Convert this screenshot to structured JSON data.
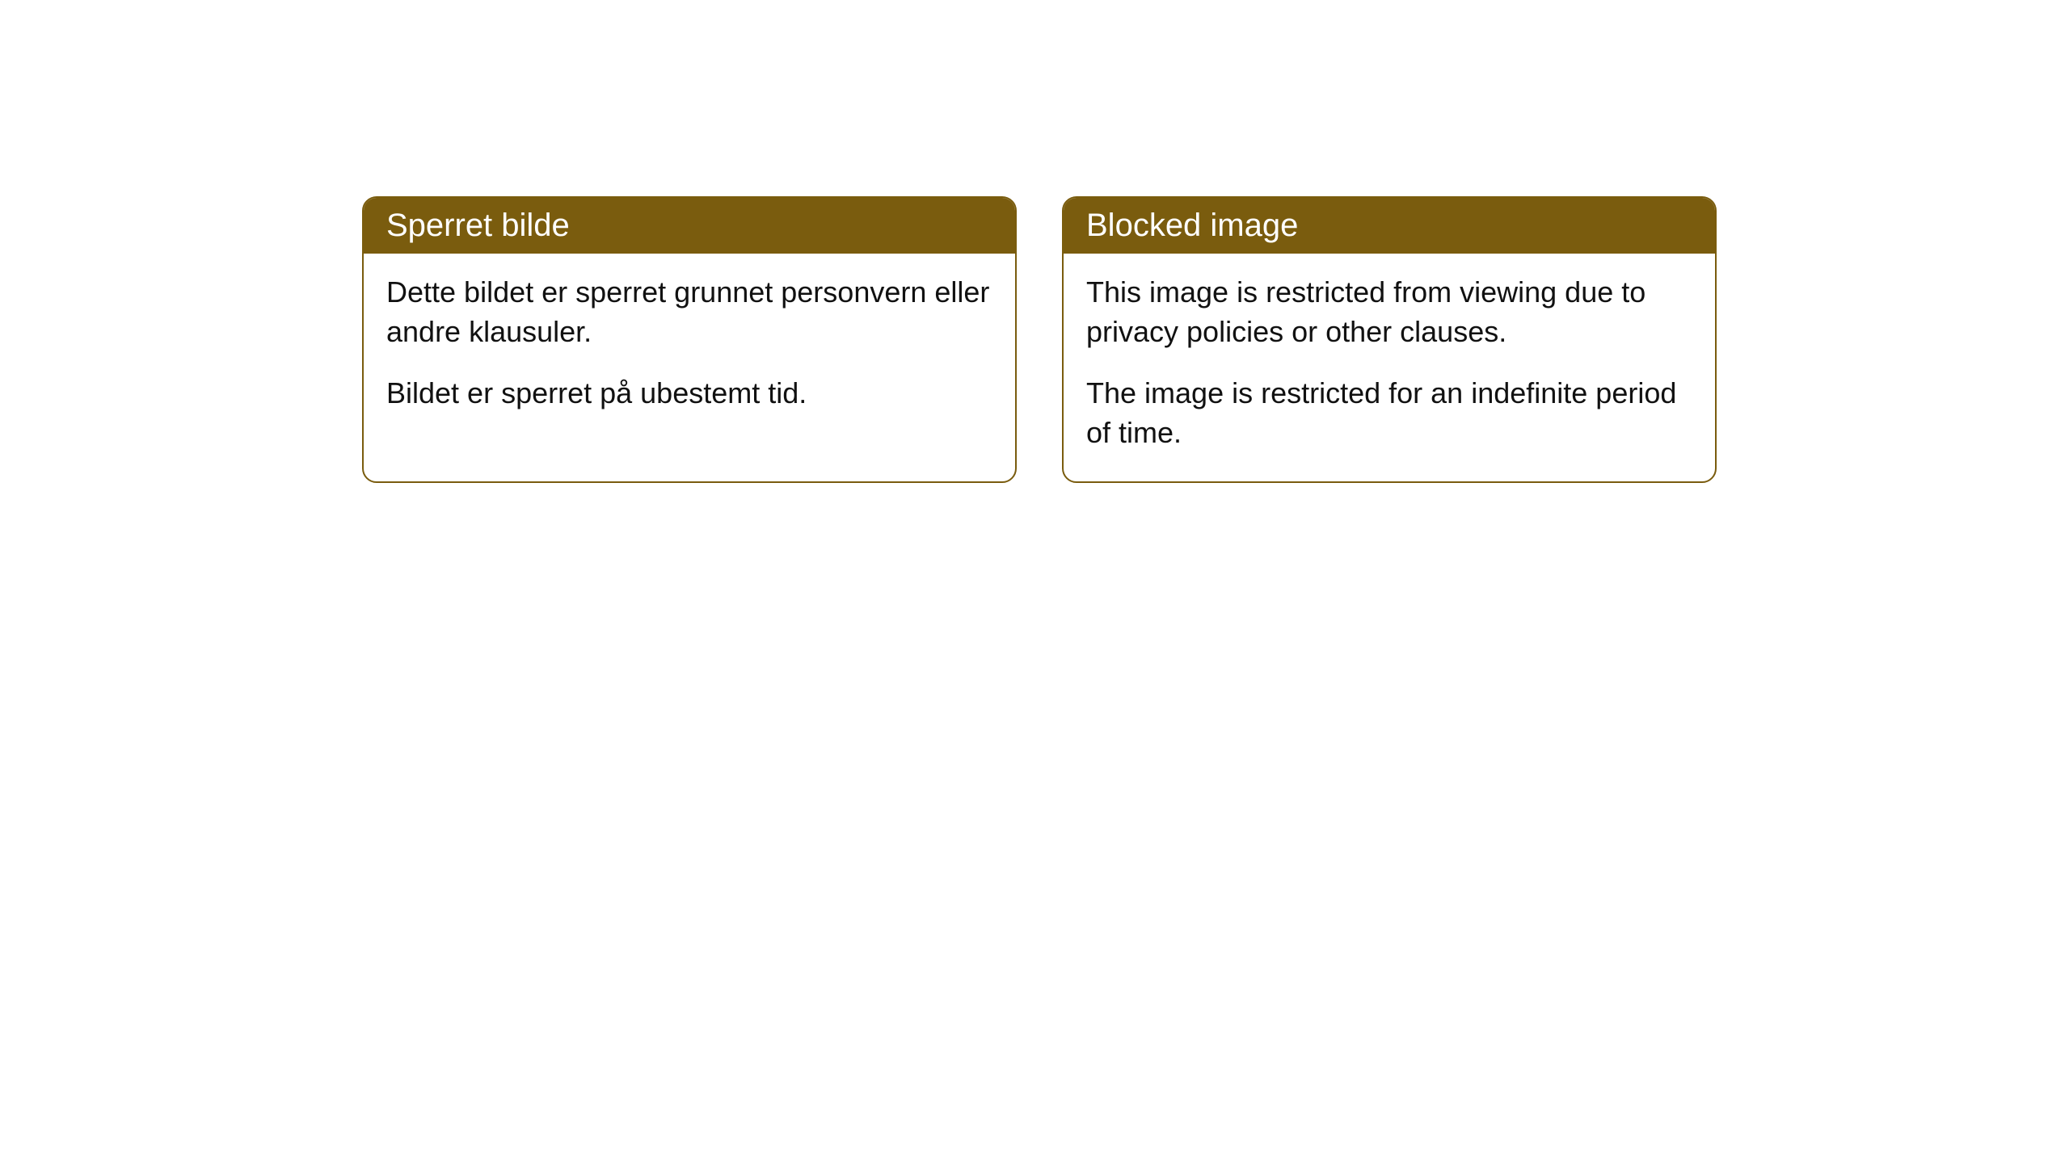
{
  "cards": [
    {
      "title": "Sperret bilde",
      "paragraph1": "Dette bildet er sperret grunnet personvern eller andre klausuler.",
      "paragraph2": "Bildet er sperret på ubestemt tid."
    },
    {
      "title": "Blocked image",
      "paragraph1": "This image is restricted from viewing due to privacy policies or other clauses.",
      "paragraph2": "The image is restricted for an indefinite period of time."
    }
  ],
  "styling": {
    "header_background": "#7a5c0e",
    "header_text_color": "#ffffff",
    "body_text_color": "#111111",
    "card_border_color": "#7a5c0e",
    "card_background": "#ffffff",
    "page_background": "#ffffff",
    "border_radius": 18,
    "header_fontsize": 40,
    "body_fontsize": 36
  }
}
